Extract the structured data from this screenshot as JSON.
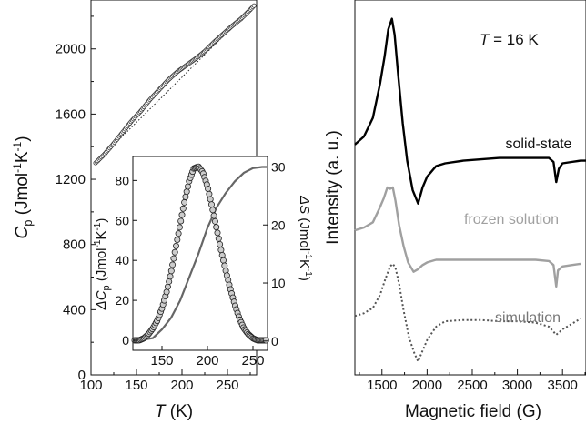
{
  "chart_data": [
    {
      "type": "scatter",
      "panel": "left-main",
      "xlabel": {
        "main": "T",
        "unit": " (K)"
      },
      "ylabel": {
        "main": "C",
        "sub": "p",
        "unit_a": " (Jmol",
        "sup1": "-1",
        "unit_b": "K",
        "sup2": "-1",
        "close": ")"
      },
      "xlim": [
        100,
        282
      ],
      "ylim": [
        0,
        2300
      ],
      "xticks": [
        "100",
        "150",
        "200",
        "250"
      ],
      "yticks": [
        "0",
        "400",
        "800",
        "1200",
        "1600",
        "2000"
      ],
      "xtick_values": [
        100,
        150,
        200,
        250
      ],
      "ytick_values": [
        0,
        400,
        800,
        1200,
        1600,
        2000
      ],
      "baseline": {
        "name": "",
        "style": "dotted",
        "x": [
          105,
          280
        ],
        "y": [
          1300,
          2270
        ]
      },
      "series": [
        {
          "name": "",
          "x": [
            105,
            115,
            125,
            135,
            145,
            155,
            165,
            175,
            185,
            195,
            205,
            215,
            225,
            235,
            245,
            255,
            265,
            275,
            280
          ],
          "y": [
            1300,
            1355,
            1420,
            1490,
            1560,
            1620,
            1690,
            1750,
            1810,
            1860,
            1900,
            1940,
            1985,
            2040,
            2090,
            2140,
            2185,
            2240,
            2270
          ]
        }
      ]
    },
    {
      "type": "scatter",
      "panel": "left-inset",
      "xlabel": "",
      "ylabel_left": {
        "main": "ΔC",
        "sub": "p",
        "unit_a": " (Jmol",
        "sup1": "-1",
        "unit_b": "K",
        "sup2": "-1",
        "close": ")"
      },
      "ylabel_right": {
        "main": "ΔS",
        "unit_a": " (Jmol",
        "sup1": "-1",
        "unit_b": "K",
        "sup2": "-1",
        "close": ")"
      },
      "xlim": [
        118,
        266
      ],
      "ylim_left": [
        -5,
        92
      ],
      "ylim_right": [
        -1.6,
        31.8
      ],
      "xticks": [
        "150",
        "200",
        "250"
      ],
      "xtick_values": [
        150,
        200,
        250
      ],
      "yticks_left": [
        "0",
        "20",
        "40",
        "60",
        "80"
      ],
      "ytick_values_left": [
        0,
        20,
        40,
        60,
        80
      ],
      "yticks_right": [
        "0",
        "10",
        "20",
        "30"
      ],
      "ytick_values_right": [
        0,
        10,
        20,
        30
      ],
      "series": [
        {
          "name": "",
          "axis": "left",
          "style": "circles",
          "x": [
            120,
            125,
            130,
            135,
            140,
            145,
            150,
            155,
            160,
            165,
            170,
            175,
            180,
            185,
            190,
            195,
            200,
            205,
            210,
            215,
            220,
            225,
            230,
            235,
            240,
            245,
            250,
            255,
            260,
            265
          ],
          "y": [
            0,
            0,
            1,
            3,
            6,
            10,
            16,
            24,
            34,
            46,
            58,
            70,
            80,
            86,
            87,
            84,
            77,
            67,
            56,
            45,
            35,
            26,
            18,
            11,
            6,
            3,
            1,
            0,
            0,
            0
          ]
        },
        {
          "name": "",
          "axis": "right",
          "style": "line",
          "x": [
            120,
            140,
            150,
            160,
            170,
            180,
            190,
            200,
            210,
            220,
            230,
            240,
            250,
            260,
            265
          ],
          "y": [
            0,
            0.5,
            2,
            4,
            7,
            11,
            15,
            19.5,
            23,
            25.5,
            27.5,
            29,
            29.8,
            30,
            30
          ]
        }
      ]
    },
    {
      "type": "line",
      "panel": "right",
      "annotation": {
        "var": "T",
        "rest": " = 16 K"
      },
      "xlabel": "Magnetic field (G)",
      "ylabel": "Intensity (a. u.)",
      "xlim": [
        1200,
        3760
      ],
      "xticks": [
        "1500",
        "2000",
        "2500",
        "3000",
        "3500"
      ],
      "xtick_values": [
        1500,
        2000,
        2500,
        3000,
        3500
      ],
      "series": [
        {
          "name": "solid-state",
          "color": "#000000",
          "style": "solid",
          "x": [
            1200,
            1300,
            1400,
            1480,
            1530,
            1570,
            1610,
            1640,
            1680,
            1730,
            1780,
            1840,
            1900,
            1950,
            2000,
            2100,
            2200,
            2400,
            2600,
            2800,
            3000,
            3200,
            3350,
            3400,
            3430,
            3460,
            3500,
            3600,
            3700,
            3760
          ],
          "y": [
            0.52,
            0.55,
            0.62,
            0.75,
            0.85,
            0.95,
            0.99,
            0.93,
            0.78,
            0.6,
            0.46,
            0.35,
            0.3,
            0.36,
            0.4,
            0.44,
            0.45,
            0.46,
            0.465,
            0.47,
            0.47,
            0.47,
            0.47,
            0.455,
            0.38,
            0.43,
            0.45,
            0.455,
            0.46,
            0.46
          ]
        },
        {
          "name": "frozen solution",
          "color": "#a0a0a0",
          "style": "solid",
          "x": [
            1200,
            1300,
            1400,
            1470,
            1520,
            1560,
            1590,
            1620,
            1650,
            1690,
            1740,
            1790,
            1850,
            1900,
            1950,
            2000,
            2100,
            2200,
            2400,
            2600,
            2800,
            3000,
            3200,
            3350,
            3400,
            3430,
            3450,
            3500,
            3600,
            3700
          ],
          "y": [
            0.2,
            0.21,
            0.23,
            0.28,
            0.32,
            0.36,
            0.355,
            0.36,
            0.31,
            0.22,
            0.14,
            0.08,
            0.045,
            0.055,
            0.07,
            0.08,
            0.09,
            0.09,
            0.09,
            0.09,
            0.09,
            0.09,
            0.09,
            0.085,
            0.07,
            -0.01,
            0.05,
            0.065,
            0.07,
            0.075
          ]
        },
        {
          "name": "simulation",
          "color": "#555555",
          "style": "dotted",
          "x": [
            1200,
            1300,
            1400,
            1480,
            1540,
            1590,
            1620,
            1650,
            1690,
            1740,
            1800,
            1860,
            1900,
            1950,
            2000,
            2100,
            2200,
            2400,
            2600,
            2800,
            3000,
            3200,
            3350,
            3430,
            3500,
            3600,
            3700
          ],
          "y": [
            -0.12,
            -0.11,
            -0.09,
            -0.04,
            0.02,
            0.065,
            0.075,
            0.06,
            0.0,
            -0.1,
            -0.2,
            -0.26,
            -0.29,
            -0.25,
            -0.21,
            -0.16,
            -0.14,
            -0.135,
            -0.135,
            -0.14,
            -0.14,
            -0.145,
            -0.16,
            -0.19,
            -0.17,
            -0.15,
            -0.13
          ]
        }
      ],
      "ylim": [
        -0.34,
        1.06
      ]
    }
  ]
}
